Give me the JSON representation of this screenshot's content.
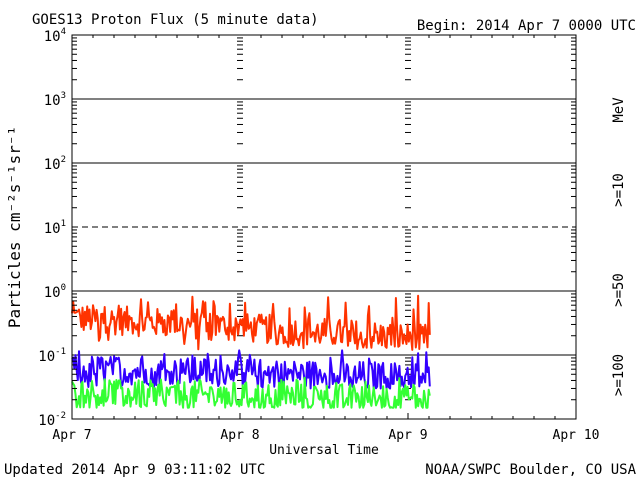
{
  "chart_data": {
    "type": "line",
    "title": "GOES13 Proton Flux (5 minute data)",
    "begin_label": "Begin: 2014 Apr 7 0000 UTC",
    "xlabel": "Universal Time",
    "ylabel": "Particles cm⁻²s⁻¹sr⁻¹",
    "yscale": "log",
    "ylim": [
      0.01,
      10000
    ],
    "y_exponents": [
      -2,
      -1,
      0,
      1,
      2,
      3,
      4
    ],
    "y_tick_labels": [
      "10",
      "10",
      "10",
      "10",
      "10",
      "10",
      "10"
    ],
    "y_tick_exponents": [
      "-2",
      "-1",
      "0",
      "1",
      "2",
      "3",
      "4"
    ],
    "xlim_days": [
      0,
      3
    ],
    "x_tick_labels": [
      "Apr 7",
      "Apr 8",
      "Apr 9",
      "Apr 10"
    ],
    "x_tick_values": [
      0,
      1,
      2,
      3
    ],
    "data_end_day": 2.13,
    "dashed_level": 10,
    "energy_unit": "MeV",
    "series": [
      {
        "name": ">=10",
        "color": "#ff3300",
        "min": 0.12,
        "max": 0.85,
        "trend_start": 0.38,
        "trend_end": 0.18
      },
      {
        "name": ">=50",
        "color": "#3300ff",
        "min": 0.03,
        "max": 0.12,
        "trend_start": 0.06,
        "trend_end": 0.045
      },
      {
        "name": ">=100",
        "color": "#33ff33",
        "min": 0.015,
        "max": 0.045,
        "trend_start": 0.025,
        "trend_end": 0.02
      }
    ],
    "updated_label": "Updated 2014 Apr  9 03:11:02 UTC",
    "source_label": "NOAA/SWPC Boulder, CO USA"
  }
}
